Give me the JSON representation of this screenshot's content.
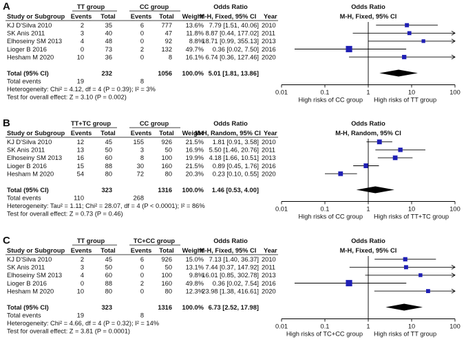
{
  "chart_data": [
    {
      "type": "forest",
      "panel": "A",
      "group1": "TT group",
      "group2": "CC group",
      "col_study": "Study or Subgroup",
      "col_events": "Events",
      "col_total": "Total",
      "col_weight": "Weight",
      "col_or": "Odds Ratio",
      "col_or_method": "M-H, Fixed, 95% CI",
      "col_year": "Year",
      "plot_title": "Odds Ratio",
      "plot_method": "M-H, Fixed, 95% CI",
      "studies": [
        {
          "name": "KJ D'Silva 2010",
          "e1": "2",
          "t1": "35",
          "e2": "6",
          "t2": "777",
          "weight": "13.6%",
          "ci_text": "7.79 [1.51, 40.06]",
          "year": "2010",
          "or": 7.79,
          "lo": 1.51,
          "hi": 40.06,
          "w": 13.6
        },
        {
          "name": "SK Anis 2011",
          "e1": "3",
          "t1": "40",
          "e2": "0",
          "t2": "47",
          "weight": "11.8%",
          "ci_text": "8.87 [0.44, 177.02]",
          "year": "2011",
          "or": 8.87,
          "lo": 0.44,
          "hi": 177.02,
          "w": 11.8
        },
        {
          "name": "Elhoseiny SM 2013",
          "e1": "4",
          "t1": "48",
          "e2": "0",
          "t2": "92",
          "weight": "8.8%",
          "ci_text": "18.71 [0.99, 355.13]",
          "year": "2013",
          "or": 18.71,
          "lo": 0.99,
          "hi": 355.13,
          "w": 8.8
        },
        {
          "name": "Lioger B 2016",
          "e1": "0",
          "t1": "73",
          "e2": "2",
          "t2": "132",
          "weight": "49.7%",
          "ci_text": "0.36 [0.02, 7.50]",
          "year": "2016",
          "or": 0.36,
          "lo": 0.02,
          "hi": 7.5,
          "w": 49.7
        },
        {
          "name": "Hesham M 2020",
          "e1": "10",
          "t1": "36",
          "e2": "0",
          "t2": "8",
          "weight": "16.1%",
          "ci_text": "6.74 [0.36, 127.46]",
          "year": "2020",
          "or": 6.74,
          "lo": 0.36,
          "hi": 127.46,
          "w": 16.1
        }
      ],
      "total": {
        "label": "Total (95% CI)",
        "t1": "232",
        "t2": "1056",
        "weight": "100.0%",
        "ci_text": "5.01 [1.81, 13.86]",
        "or": 5.01,
        "lo": 1.81,
        "hi": 13.86
      },
      "total_events": {
        "label": "Total events",
        "e1": "19",
        "e2": "8"
      },
      "heterogeneity": "Heterogeneity: Chi² = 4.12, df = 4 (P = 0.39); I² = 3%",
      "overall_effect": "Test for overall effect: Z = 3.10 (P = 0.002)",
      "axis_ticks": [
        {
          "v": 0.01,
          "label": "0.01"
        },
        {
          "v": 0.1,
          "label": "0.1"
        },
        {
          "v": 1,
          "label": "1"
        },
        {
          "v": 10,
          "label": "10"
        },
        {
          "v": 100,
          "label": "100"
        }
      ],
      "favours_left": "High risks of CC group",
      "favours_right": "High risks of TT group"
    },
    {
      "type": "forest",
      "panel": "B",
      "group1": "TT+TC group",
      "group2": "CC group",
      "col_study": "Study or Subgroup",
      "col_events": "Events",
      "col_total": "Total",
      "col_weight": "Weight",
      "col_or": "Odds Ratio",
      "col_or_method": "M-H, Random, 95% CI",
      "col_year": "Year",
      "plot_title": "Odds Ratio",
      "plot_method": "M-H, Random, 95% CI",
      "studies": [
        {
          "name": "KJ D'Silva 2010",
          "e1": "12",
          "t1": "45",
          "e2": "155",
          "t2": "926",
          "weight": "21.5%",
          "ci_text": "1.81 [0.91, 3.58]",
          "year": "2010",
          "or": 1.81,
          "lo": 0.91,
          "hi": 3.58,
          "w": 21.5
        },
        {
          "name": "SK Anis 2011",
          "e1": "13",
          "t1": "50",
          "e2": "3",
          "t2": "50",
          "weight": "16.9%",
          "ci_text": "5.50 [1.46, 20.76]",
          "year": "2011",
          "or": 5.5,
          "lo": 1.46,
          "hi": 20.76,
          "w": 16.9
        },
        {
          "name": "Elhoseiny SM 2013",
          "e1": "16",
          "t1": "60",
          "e2": "8",
          "t2": "100",
          "weight": "19.9%",
          "ci_text": "4.18 [1.66, 10.51]",
          "year": "2013",
          "or": 4.18,
          "lo": 1.66,
          "hi": 10.51,
          "w": 19.9
        },
        {
          "name": "Lioger B 2016",
          "e1": "15",
          "t1": "88",
          "e2": "30",
          "t2": "160",
          "weight": "21.5%",
          "ci_text": "0.89 [0.45, 1.76]",
          "year": "2016",
          "or": 0.89,
          "lo": 0.45,
          "hi": 1.76,
          "w": 21.5
        },
        {
          "name": "Hesham M 2020",
          "e1": "54",
          "t1": "80",
          "e2": "72",
          "t2": "80",
          "weight": "20.3%",
          "ci_text": "0.23 [0.10, 0.55]",
          "year": "2020",
          "or": 0.23,
          "lo": 0.1,
          "hi": 0.55,
          "w": 20.3
        }
      ],
      "total": {
        "label": "Total (95% CI)",
        "t1": "323",
        "t2": "1316",
        "weight": "100.0%",
        "ci_text": "1.46 [0.53, 4.00]",
        "or": 1.46,
        "lo": 0.53,
        "hi": 4.0
      },
      "total_events": {
        "label": "Total events",
        "e1": "110",
        "e2": "268"
      },
      "heterogeneity": "Heterogeneity: Tau² = 1.11; Chi² = 28.07, df = 4 (P < 0.0001); I² = 86%",
      "overall_effect": "Test for overall effect: Z = 0.73 (P = 0.46)",
      "axis_ticks": [
        {
          "v": 0.01,
          "label": "0.01"
        },
        {
          "v": 0.1,
          "label": "0.1"
        },
        {
          "v": 1,
          "label": "1"
        },
        {
          "v": 10,
          "label": "10"
        },
        {
          "v": 100,
          "label": "100"
        }
      ],
      "favours_left": "High risks of CC group",
      "favours_right": "High risks of TT+TC group"
    },
    {
      "type": "forest",
      "panel": "C",
      "group1": "TT group",
      "group2": "TC+CC group",
      "col_study": "Study or Subgroup",
      "col_events": "Events",
      "col_total": "Total",
      "col_weight": "Weight",
      "col_or": "Odds Ratio",
      "col_or_method": "M-H, Fixed, 95% CI",
      "col_year": "Year",
      "plot_title": "Odds Ratio",
      "plot_method": "M-H, Fixed, 95% CI",
      "studies": [
        {
          "name": "KJ D'Silva 2010",
          "e1": "2",
          "t1": "45",
          "e2": "6",
          "t2": "926",
          "weight": "15.0%",
          "ci_text": "7.13 [1.40, 36.37]",
          "year": "2010",
          "or": 7.13,
          "lo": 1.4,
          "hi": 36.37,
          "w": 15.0
        },
        {
          "name": "SK Anis 2011",
          "e1": "3",
          "t1": "50",
          "e2": "0",
          "t2": "50",
          "weight": "13.1%",
          "ci_text": "7.44 [0.37, 147.92]",
          "year": "2011",
          "or": 7.44,
          "lo": 0.37,
          "hi": 147.92,
          "w": 13.1
        },
        {
          "name": "Elhoseiny SM 2013",
          "e1": "4",
          "t1": "60",
          "e2": "0",
          "t2": "100",
          "weight": "9.8%",
          "ci_text": "16.01 [0.85, 302.78]",
          "year": "2013",
          "or": 16.01,
          "lo": 0.85,
          "hi": 302.78,
          "w": 9.8
        },
        {
          "name": "Lioger B 2016",
          "e1": "0",
          "t1": "88",
          "e2": "2",
          "t2": "160",
          "weight": "49.8%",
          "ci_text": "0.36 [0.02, 7.54]",
          "year": "2016",
          "or": 0.36,
          "lo": 0.02,
          "hi": 7.54,
          "w": 49.8
        },
        {
          "name": "Hesham M 2020",
          "e1": "10",
          "t1": "80",
          "e2": "0",
          "t2": "80",
          "weight": "12.3%",
          "ci_text": "23.98 [1.38, 416.61]",
          "year": "2020",
          "or": 23.98,
          "lo": 1.38,
          "hi": 416.61,
          "w": 12.3
        }
      ],
      "total": {
        "label": "Total (95% CI)",
        "t1": "323",
        "t2": "1316",
        "weight": "100.0%",
        "ci_text": "6.73 [2.52, 17.98]",
        "or": 6.73,
        "lo": 2.52,
        "hi": 17.98
      },
      "total_events": {
        "label": "Total events",
        "e1": "19",
        "e2": "8"
      },
      "heterogeneity": "Heterogeneity: Chi² = 4.66, df = 4 (P = 0.32); I² = 14%",
      "overall_effect": "Test for overall effect: Z = 3.81 (P = 0.0001)",
      "axis_ticks": [
        {
          "v": 0.01,
          "label": "0.01"
        },
        {
          "v": 0.1,
          "label": "0.1"
        },
        {
          "v": 1,
          "label": "1"
        },
        {
          "v": 10,
          "label": "10"
        },
        {
          "v": 100,
          "label": "100"
        }
      ],
      "favours_left": "High risks of TC+CC group",
      "favours_right": "High risks of TT group"
    }
  ],
  "colors": {
    "marker": "#1f1fb4",
    "text": "#111111",
    "line": "#000000"
  }
}
